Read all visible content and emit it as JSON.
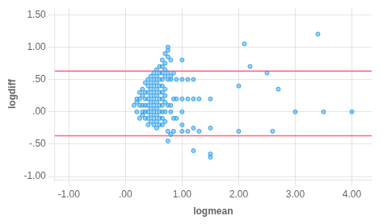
{
  "chart_data": {
    "type": "scatter",
    "title": "",
    "xlabel": "logmean",
    "ylabel": "logdiff",
    "xlim": [
      -1.25,
      4.35
    ],
    "ylim": [
      -1.05,
      1.6
    ],
    "xticks": [
      {
        "value": -1.0,
        "label": "-1.00"
      },
      {
        "value": 0.0,
        "label": ".00"
      },
      {
        "value": 1.0,
        "label": "1.00"
      },
      {
        "value": 2.0,
        "label": "2.00"
      },
      {
        "value": 3.0,
        "label": "3.00"
      },
      {
        "value": 4.0,
        "label": "4.00"
      }
    ],
    "yticks": [
      {
        "value": -1.0,
        "label": "-1.00"
      },
      {
        "value": -0.5,
        "label": "-.50"
      },
      {
        "value": 0.0,
        "label": ".00"
      },
      {
        "value": 0.5,
        "label": ".50"
      },
      {
        "value": 1.0,
        "label": "1.00"
      },
      {
        "value": 1.5,
        "label": "1.50"
      }
    ],
    "grid": true,
    "hlines": [
      0.63,
      -0.37
    ],
    "x": [
      0.15,
      0.2,
      0.2,
      0.2,
      0.25,
      0.25,
      0.25,
      0.25,
      0.3,
      0.3,
      0.3,
      0.3,
      0.3,
      0.35,
      0.35,
      0.35,
      0.35,
      0.35,
      0.35,
      0.4,
      0.4,
      0.4,
      0.4,
      0.4,
      0.4,
      0.4,
      0.4,
      0.45,
      0.45,
      0.45,
      0.45,
      0.45,
      0.45,
      0.45,
      0.45,
      0.5,
      0.5,
      0.5,
      0.5,
      0.5,
      0.5,
      0.5,
      0.5,
      0.5,
      0.55,
      0.55,
      0.55,
      0.55,
      0.55,
      0.55,
      0.55,
      0.55,
      0.55,
      0.55,
      0.6,
      0.6,
      0.6,
      0.6,
      0.6,
      0.6,
      0.6,
      0.6,
      0.6,
      0.6,
      0.65,
      0.65,
      0.65,
      0.65,
      0.65,
      0.65,
      0.65,
      0.65,
      0.65,
      0.65,
      0.65,
      0.7,
      0.7,
      0.7,
      0.7,
      0.7,
      0.7,
      0.7,
      0.7,
      0.7,
      0.75,
      0.75,
      0.75,
      0.75,
      0.75,
      0.75,
      0.75,
      0.75,
      0.8,
      0.8,
      0.8,
      0.8,
      0.8,
      0.8,
      0.85,
      0.85,
      0.85,
      0.85,
      0.9,
      0.9,
      0.9,
      1.0,
      1.0,
      1.0,
      1.0,
      1.0,
      1.0,
      1.1,
      1.1,
      1.1,
      1.2,
      1.2,
      1.2,
      1.2,
      1.3,
      1.3,
      1.5,
      1.5,
      1.5,
      1.5,
      2.0,
      2.0,
      2.1,
      2.2,
      2.5,
      2.6,
      2.7,
      3.0,
      3.4,
      3.5,
      4.0
    ],
    "values": [
      0.1,
      0.15,
      0.2,
      0.0,
      0.3,
      0.2,
      -0.1,
      0.1,
      0.35,
      0.25,
      0.1,
      0.0,
      -0.05,
      0.45,
      0.3,
      0.2,
      0.1,
      0.0,
      -0.1,
      0.5,
      0.4,
      0.3,
      0.2,
      0.1,
      0.0,
      -0.1,
      -0.2,
      0.55,
      0.45,
      0.35,
      0.25,
      0.15,
      0.05,
      -0.05,
      -0.15,
      0.6,
      0.5,
      0.4,
      0.3,
      0.2,
      0.1,
      0.0,
      -0.1,
      -0.2,
      0.65,
      0.55,
      0.45,
      0.35,
      0.25,
      0.15,
      0.05,
      -0.05,
      -0.15,
      -0.25,
      0.7,
      0.6,
      0.5,
      0.4,
      0.3,
      0.2,
      0.1,
      0.0,
      -0.1,
      -0.2,
      0.8,
      0.7,
      0.6,
      0.5,
      0.4,
      0.3,
      0.2,
      0.1,
      0.0,
      -0.1,
      -0.2,
      0.9,
      0.75,
      0.65,
      0.55,
      0.35,
      0.25,
      0.15,
      0.0,
      -0.15,
      1.0,
      0.95,
      0.85,
      0.6,
      0.5,
      0.1,
      -0.3,
      -0.45,
      0.8,
      0.55,
      0.5,
      0.1,
      0.0,
      -0.35,
      0.6,
      0.2,
      -0.1,
      -0.3,
      0.5,
      0.2,
      -0.1,
      0.8,
      0.5,
      0.2,
      0.0,
      -0.2,
      -0.3,
      0.5,
      0.2,
      -0.3,
      0.5,
      0.2,
      -0.25,
      -0.6,
      0.2,
      -0.3,
      0.2,
      -0.25,
      -0.65,
      -0.7,
      0.4,
      -0.3,
      1.05,
      0.7,
      0.6,
      -0.3,
      0.35,
      0.0,
      1.2,
      0.0,
      0.0
    ]
  }
}
